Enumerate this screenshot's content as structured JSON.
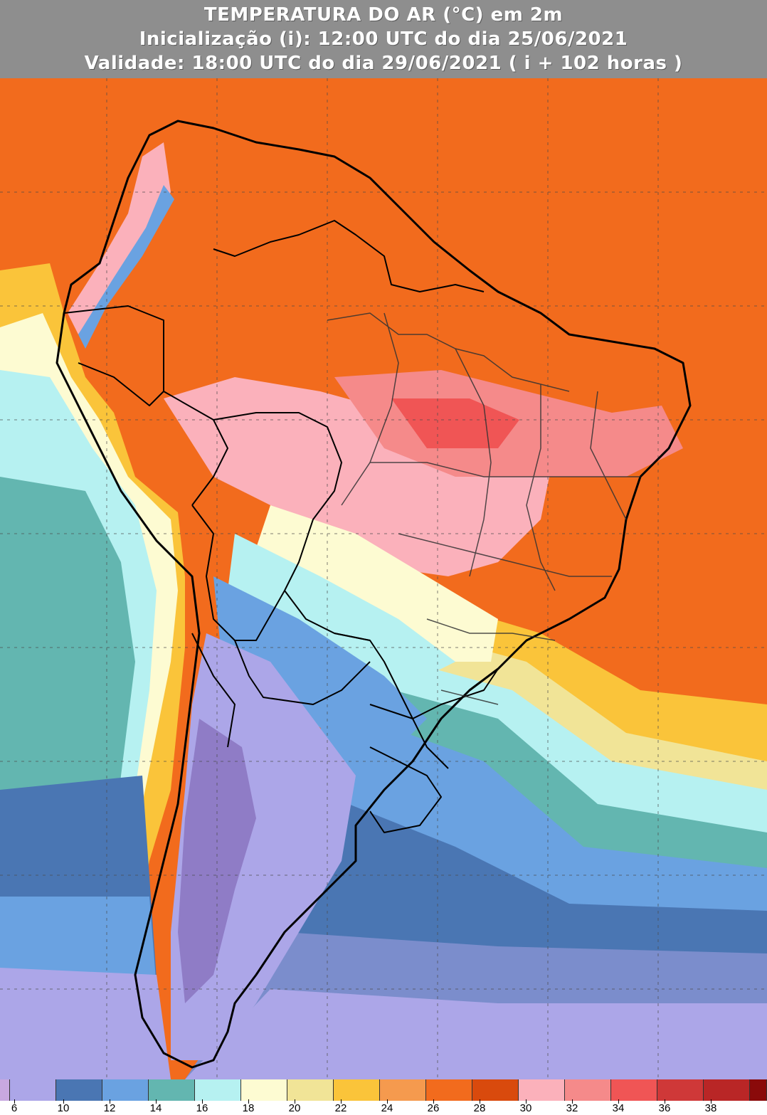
{
  "header": {
    "title": "TEMPERATURA DO AR (°C) em 2m",
    "init": "Inicialização (i): 12:00 UTC do dia 25/06/2021",
    "valid": "Validade: 18:00 UTC do dia 29/06/2021 ( i + 102 horas )"
  },
  "legend": {
    "bins": [
      {
        "color": "#c8a8e0"
      },
      {
        "color": "#aca6e8"
      },
      {
        "color": "#4a76b3"
      },
      {
        "color": "#6aa2e1"
      },
      {
        "color": "#63b6b0"
      },
      {
        "color": "#b6f1f1"
      },
      {
        "color": "#fdfbd2"
      },
      {
        "color": "#f1e497"
      },
      {
        "color": "#fac43a"
      },
      {
        "color": "#f59a4e"
      },
      {
        "color": "#f26b1d"
      },
      {
        "color": "#d94a0d"
      },
      {
        "color": "#fbb1bb"
      },
      {
        "color": "#f58a8a"
      },
      {
        "color": "#f05555"
      },
      {
        "color": "#cf3838"
      },
      {
        "color": "#b92626"
      },
      {
        "color": "#8a0a0a"
      }
    ],
    "labels": [
      "6",
      "10",
      "12",
      "14",
      "16",
      "18",
      "20",
      "22",
      "24",
      "26",
      "28",
      "30",
      "32",
      "34",
      "36",
      "38"
    ]
  }
}
